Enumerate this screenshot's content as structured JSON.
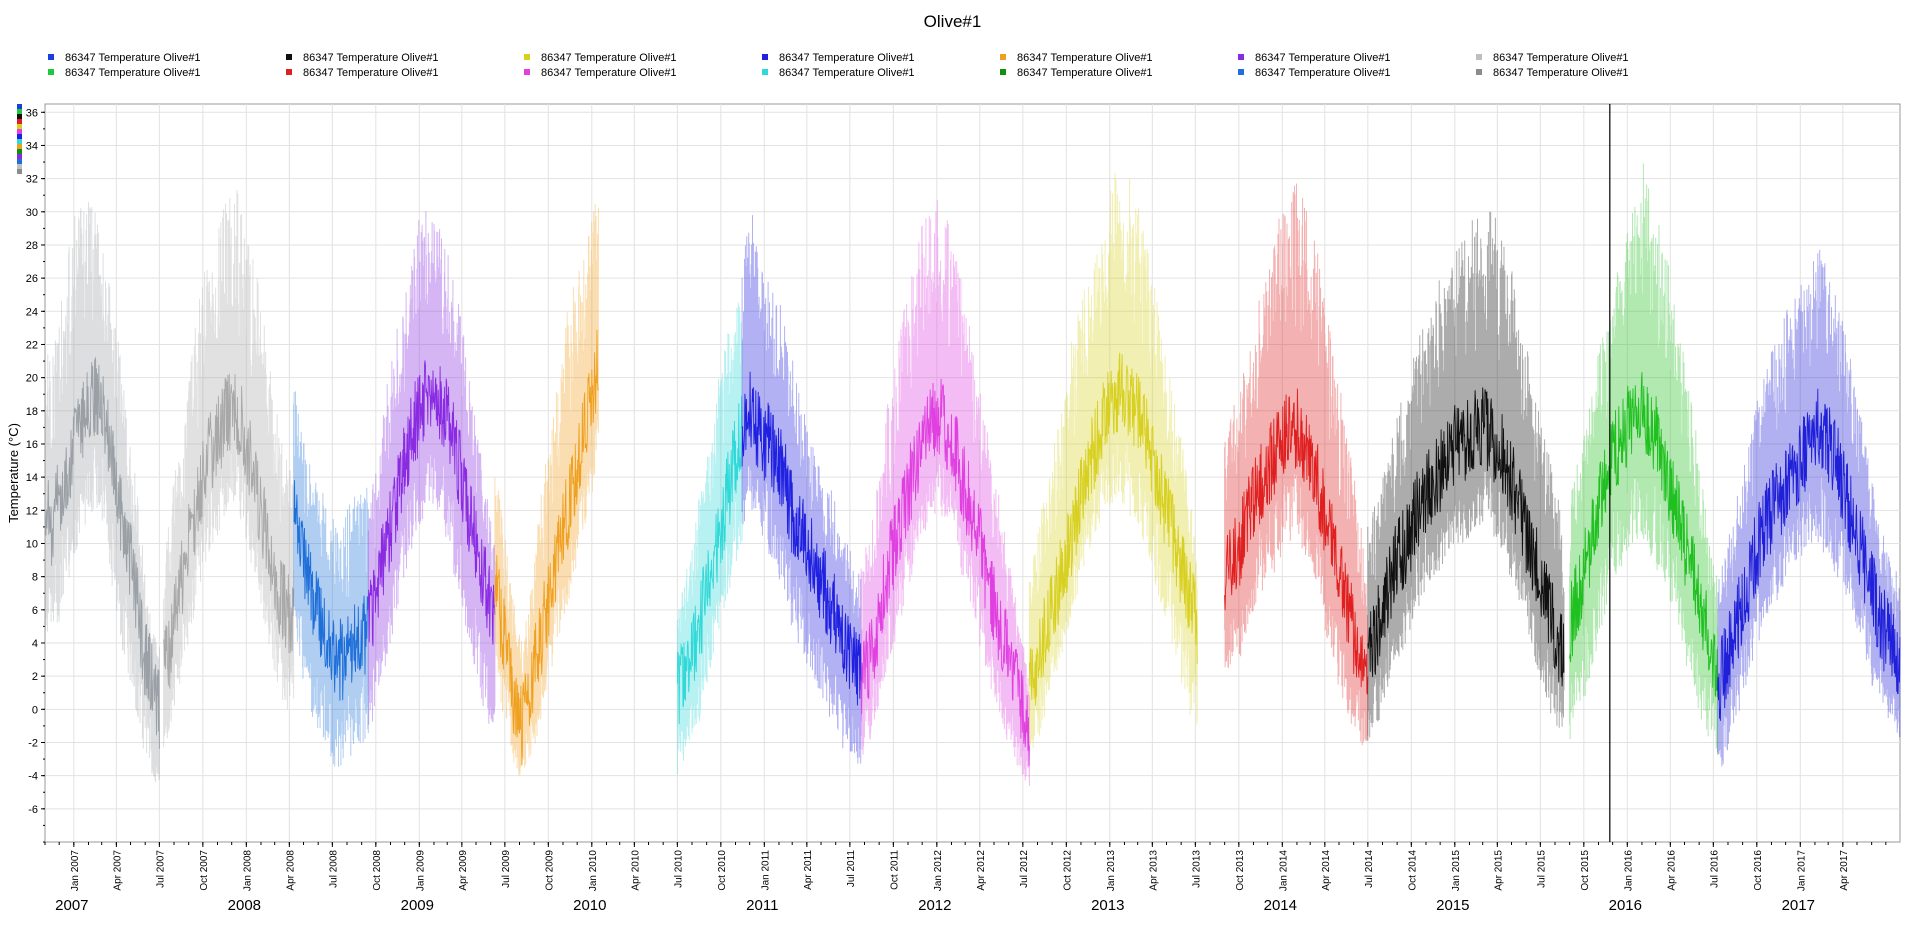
{
  "chart_data": {
    "type": "line",
    "title": "Olive#1",
    "ylabel": "Temperature (°C)",
    "xlabel": "",
    "ylim": [
      -8,
      36.5
    ],
    "xlim": [
      "2006-11-01",
      "2017-07-31"
    ],
    "y_ticks": [
      -6,
      -4,
      -2,
      0,
      2,
      4,
      6,
      8,
      10,
      12,
      14,
      16,
      18,
      20,
      22,
      24,
      26,
      28,
      30,
      32,
      34,
      36
    ],
    "x_tick_labels": [
      "Jan 2007",
      "Apr 2007",
      "Jul 2007",
      "Oct 2007",
      "Jan 2008",
      "Apr 2008",
      "Jul 2008",
      "Oct 2008",
      "Jan 2009",
      "Apr 2009",
      "Jul 2009",
      "Oct 2009",
      "Jan 2010",
      "Apr 2010",
      "Jul 2010",
      "Oct 2010",
      "Jan 2011",
      "Apr 2011",
      "Jul 2011",
      "Oct 2011",
      "Jan 2012",
      "Apr 2012",
      "Jul 2012",
      "Oct 2012",
      "Jan 2013",
      "Apr 2013",
      "Jul 2013",
      "Oct 2013",
      "Jan 2014",
      "Apr 2014",
      "Jul 2014",
      "Oct 2014",
      "Jan 2015",
      "Apr 2015",
      "Jul 2015",
      "Oct 2015",
      "Jan 2016",
      "Apr 2016",
      "Jul 2016",
      "Oct 2016",
      "Jan 2017",
      "Apr 2017"
    ],
    "year_labels": [
      "2007",
      "2008",
      "2009",
      "2010",
      "2011",
      "2012",
      "2013",
      "2014",
      "2015",
      "2016",
      "2017"
    ],
    "grid": true,
    "cursor_line_date": "2015-11-25",
    "legend_position": "top",
    "series": [
      {
        "name": "86347  Temperature Olive#1",
        "color": "#9aa0a6",
        "start": "2006-11-01",
        "end": "2007-07-01",
        "daily_mean": [
          12,
          11,
          13,
          14,
          16,
          17,
          18,
          19,
          18,
          16,
          13,
          11,
          9,
          6,
          3,
          2,
          0
        ],
        "daily_max": [
          22,
          21,
          24,
          27,
          30,
          31,
          31,
          30,
          28,
          26,
          23,
          20,
          16,
          13,
          8,
          5,
          4
        ],
        "daily_min": [
          4,
          4,
          5,
          7,
          9,
          10,
          11,
          12,
          11,
          8,
          6,
          3,
          1,
          -1,
          -3,
          -4,
          -5
        ]
      },
      {
        "name": "86347  Temperature Olive#1",
        "color": "#a8a8a8",
        "start": "2007-07-10",
        "end": "2008-04-10",
        "daily_mean": [
          2,
          4,
          7,
          9,
          11,
          13,
          15,
          16,
          17,
          18,
          18,
          17,
          15,
          13,
          11,
          9,
          7,
          6,
          5
        ],
        "daily_max": [
          8,
          13,
          16,
          18,
          22,
          25,
          27,
          29,
          30,
          31,
          32,
          30,
          28,
          26,
          23,
          20,
          18,
          16,
          14
        ],
        "daily_min": [
          -3,
          -1,
          1,
          3,
          5,
          7,
          9,
          10,
          11,
          12,
          12,
          11,
          9,
          7,
          5,
          3,
          1,
          0,
          -1
        ]
      },
      {
        "name": "86347  Temperature Olive#1",
        "color": "#1e6fd9",
        "start": "2008-04-10",
        "end": "2008-09-15",
        "daily_mean": [
          12,
          10,
          8,
          6,
          5,
          4,
          3,
          3,
          4,
          4,
          5
        ],
        "daily_max": [
          20,
          17,
          15,
          14,
          13,
          12,
          11,
          12,
          13,
          13,
          14
        ],
        "daily_min": [
          4,
          2,
          0,
          -1,
          -2,
          -3,
          -4,
          -3,
          -3,
          -2,
          -2
        ]
      },
      {
        "name": "86347  Temperature Olive#1",
        "color": "#8a2be2",
        "start": "2008-09-15",
        "end": "2009-06-10",
        "daily_mean": [
          5,
          7,
          9,
          11,
          13,
          15,
          17,
          18,
          19,
          19,
          18,
          17,
          15,
          13,
          11,
          9,
          7,
          5
        ],
        "daily_max": [
          12,
          15,
          18,
          22,
          24,
          26,
          28,
          30,
          31,
          30,
          29,
          27,
          25,
          22,
          19,
          16,
          13,
          10
        ],
        "daily_min": [
          -2,
          0,
          2,
          4,
          6,
          8,
          10,
          11,
          12,
          12,
          11,
          9,
          7,
          5,
          3,
          1,
          -1,
          -2
        ]
      },
      {
        "name": "86347  Temperature Olive#1",
        "color": "#f0a020",
        "start": "2009-06-10",
        "end": "2010-01-15",
        "daily_mean": [
          8,
          5,
          3,
          0,
          -1,
          1,
          3,
          5,
          7,
          9,
          11,
          13,
          15,
          17,
          19,
          21
        ],
        "daily_max": [
          15,
          12,
          9,
          6,
          4,
          7,
          11,
          14,
          17,
          20,
          23,
          25,
          27,
          28,
          30,
          31
        ],
        "daily_min": [
          2,
          0,
          -2,
          -4,
          -4,
          -3,
          -2,
          0,
          2,
          4,
          5,
          7,
          9,
          11,
          13,
          14
        ]
      },
      {
        "name": "86347  Temperature Olive#1",
        "color": "#30d8d8",
        "start": "2010-07-01",
        "end": "2010-11-15",
        "daily_mean": [
          1,
          2,
          3,
          5,
          7,
          9,
          11,
          13,
          15,
          17
        ],
        "daily_max": [
          6,
          8,
          10,
          13,
          15,
          18,
          21,
          23,
          25,
          27
        ],
        "daily_min": [
          -4,
          -3,
          -2,
          -1,
          1,
          3,
          5,
          7,
          8,
          10
        ]
      },
      {
        "name": "86347  Temperature Olive#1",
        "color": "#2020e0",
        "start": "2010-11-15",
        "end": "2011-07-25",
        "daily_mean": [
          17,
          18,
          17,
          16,
          16,
          15,
          14,
          12,
          11,
          10,
          9,
          8,
          7,
          6,
          5,
          4,
          3,
          2
        ],
        "daily_max": [
          27,
          30,
          31,
          28,
          26,
          25,
          24,
          22,
          20,
          18,
          16,
          15,
          14,
          13,
          11,
          10,
          9,
          8
        ],
        "daily_min": [
          11,
          12,
          12,
          10,
          9,
          8,
          7,
          5,
          4,
          3,
          2,
          1,
          0,
          -1,
          -2,
          -3,
          -3,
          -4
        ]
      },
      {
        "name": "86347  Temperature Olive#1",
        "color": "#e040e0",
        "start": "2011-07-25",
        "end": "2012-07-15",
        "daily_mean": [
          2,
          3,
          5,
          8,
          10,
          12,
          14,
          16,
          17,
          18,
          17,
          16,
          14,
          12,
          10,
          8,
          6,
          4,
          2,
          0,
          -2
        ],
        "daily_max": [
          9,
          11,
          14,
          18,
          21,
          24,
          27,
          29,
          30,
          31,
          30,
          28,
          26,
          23,
          20,
          17,
          14,
          11,
          8,
          5,
          2
        ],
        "daily_min": [
          -3,
          -2,
          0,
          2,
          4,
          6,
          8,
          10,
          11,
          12,
          11,
          10,
          8,
          6,
          4,
          2,
          0,
          -2,
          -3,
          -4,
          -5
        ]
      },
      {
        "name": "86347  Temperature Olive#1",
        "color": "#d8d020",
        "start": "2012-07-15",
        "end": "2013-07-05",
        "daily_mean": [
          1,
          3,
          5,
          7,
          9,
          11,
          13,
          15,
          17,
          18,
          19,
          19,
          18,
          17,
          15,
          13,
          11,
          9,
          7,
          5
        ],
        "daily_max": [
          8,
          11,
          14,
          17,
          20,
          23,
          25,
          27,
          29,
          31,
          33,
          33,
          31,
          29,
          26,
          23,
          20,
          17,
          14,
          10
        ],
        "daily_min": [
          -3,
          -2,
          0,
          2,
          4,
          6,
          8,
          10,
          11,
          12,
          13,
          12,
          11,
          10,
          8,
          6,
          4,
          2,
          0,
          -2
        ]
      },
      {
        "name": "86347  Temperature Olive#1",
        "color": "#e02020",
        "start": "2013-09-01",
        "end": "2014-07-01",
        "daily_mean": [
          8,
          9,
          10,
          12,
          13,
          14,
          15,
          16,
          17,
          17,
          16,
          15,
          13,
          11,
          9,
          7,
          5,
          3,
          1
        ],
        "daily_max": [
          16,
          18,
          20,
          22,
          24,
          26,
          28,
          30,
          31,
          32,
          31,
          29,
          27,
          24,
          21,
          18,
          15,
          12,
          8
        ],
        "daily_min": [
          1,
          2,
          3,
          5,
          6,
          7,
          8,
          9,
          10,
          10,
          9,
          8,
          6,
          4,
          2,
          0,
          -1,
          -2,
          -3
        ]
      },
      {
        "name": "86347  Temperature Olive#1",
        "color": "#101010",
        "start": "2014-07-01",
        "end": "2015-08-20",
        "daily_mean": [
          3,
          5,
          7,
          9,
          10,
          12,
          13,
          14,
          15,
          16,
          16,
          17,
          17,
          16,
          15,
          13,
          11,
          9,
          7,
          5,
          3
        ],
        "daily_max": [
          11,
          13,
          15,
          18,
          20,
          22,
          24,
          26,
          27,
          28,
          29,
          30,
          31,
          30,
          28,
          26,
          23,
          20,
          17,
          14,
          11
        ],
        "daily_min": [
          -2,
          -1,
          1,
          3,
          4,
          6,
          7,
          8,
          9,
          10,
          10,
          11,
          11,
          10,
          9,
          7,
          5,
          3,
          1,
          -1,
          -2
        ]
      },
      {
        "name": "86347  Temperature Olive#1",
        "color": "#20c020",
        "start": "2015-09-01",
        "end": "2016-07-10",
        "daily_mean": [
          5,
          7,
          9,
          11,
          13,
          15,
          16,
          17,
          18,
          18,
          17,
          16,
          14,
          12,
          10,
          8,
          6,
          4,
          2
        ],
        "daily_max": [
          13,
          15,
          18,
          20,
          23,
          25,
          27,
          29,
          31,
          33,
          31,
          29,
          27,
          24,
          21,
          18,
          15,
          11,
          8
        ],
        "daily_min": [
          -2,
          -1,
          1,
          3,
          5,
          7,
          8,
          9,
          10,
          10,
          9,
          8,
          7,
          5,
          3,
          1,
          -1,
          -2,
          -3
        ]
      },
      {
        "name": "86347  Temperature Olive#1",
        "color": "#2020d8",
        "start": "2016-07-10",
        "end": "2017-07-31",
        "daily_mean": [
          1,
          3,
          5,
          7,
          9,
          11,
          12,
          13,
          14,
          15,
          16,
          17,
          16,
          15,
          13,
          11,
          9,
          7,
          5,
          4,
          3
        ],
        "daily_max": [
          8,
          10,
          13,
          15,
          18,
          20,
          22,
          23,
          25,
          26,
          27,
          28,
          27,
          25,
          23,
          20,
          17,
          14,
          11,
          9,
          8
        ],
        "daily_min": [
          -4,
          -3,
          -1,
          1,
          3,
          5,
          6,
          7,
          8,
          9,
          10,
          10,
          9,
          8,
          7,
          5,
          3,
          1,
          0,
          -1,
          -2
        ]
      }
    ],
    "legend": [
      {
        "name": "86347  Temperature Olive#1",
        "color": "#1a3fe0"
      },
      {
        "name": "86347  Temperature Olive#1",
        "color": "#20c840"
      },
      {
        "name": "86347  Temperature Olive#1",
        "color": "#101010"
      },
      {
        "name": "86347  Temperature Olive#1",
        "color": "#e02020"
      },
      {
        "name": "86347  Temperature Olive#1",
        "color": "#d8d020"
      },
      {
        "name": "86347  Temperature Olive#1",
        "color": "#e040e0"
      },
      {
        "name": "86347  Temperature Olive#1",
        "color": "#2020e0"
      },
      {
        "name": "86347  Temperature Olive#1",
        "color": "#30d8d8"
      },
      {
        "name": "86347  Temperature Olive#1",
        "color": "#f0a020"
      },
      {
        "name": "86347  Temperature Olive#1",
        "color": "#109010"
      },
      {
        "name": "86347  Temperature Olive#1",
        "color": "#8a2be2"
      },
      {
        "name": "86347  Temperature Olive#1",
        "color": "#1e6fd9"
      },
      {
        "name": "86347  Temperature Olive#1",
        "color": "#bfbfbf"
      },
      {
        "name": "86347  Temperature Olive#1",
        "color": "#8c8c8c"
      }
    ]
  }
}
